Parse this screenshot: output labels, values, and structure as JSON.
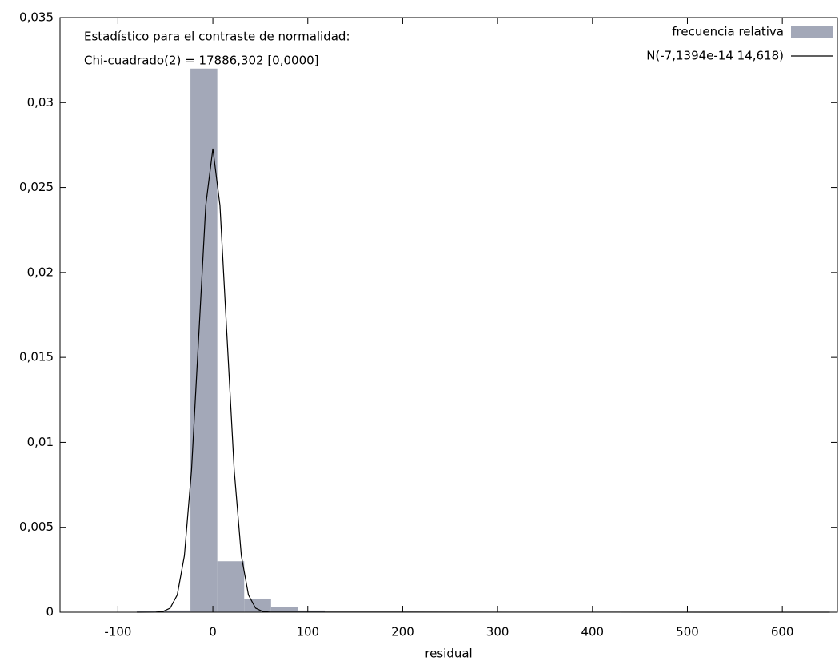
{
  "chart_data": {
    "type": "histogram",
    "annotations": [
      "Estadístico para el contraste de normalidad:",
      "Chi-cuadrado(2) = 17886,302 [0,0000]"
    ],
    "xlabel": "residual",
    "xlim": [
      -161,
      658
    ],
    "ylim": [
      0,
      0.035
    ],
    "xticks": [
      -100,
      0,
      100,
      200,
      300,
      400,
      500,
      600
    ],
    "yticks": [
      0,
      {
        "value": 0.005,
        "label": "0,005"
      },
      {
        "value": 0.01,
        "label": "0,01"
      },
      {
        "value": 0.015,
        "label": "0,015"
      },
      {
        "value": 0.02,
        "label": "0,02"
      },
      {
        "value": 0.025,
        "label": "0,025"
      },
      {
        "value": 0.03,
        "label": "0,03"
      },
      {
        "value": 0.035,
        "label": "0,035"
      }
    ],
    "legend": "upper right",
    "series": [
      {
        "name": "frecuencia relativa",
        "type": "histogram",
        "color": "#a3a8b8",
        "bins": [
          -80.2,
          -51.9,
          -23.6,
          4.7,
          33,
          61.3,
          89.6,
          117.9
        ],
        "values": [
          5e-05,
          0.0001,
          0.032,
          0.003,
          0.0008,
          0.0003,
          0.0001
        ]
      },
      {
        "name": "N(-7,1394e-14 14,618)",
        "type": "line",
        "color": "#000000",
        "x": [
          -80,
          -60,
          -52.5,
          -45,
          -37.5,
          -30,
          -22.5,
          -15,
          -7.5,
          0,
          7.5,
          15,
          22.5,
          30,
          37.5,
          45,
          52.5,
          60,
          650
        ],
        "values": [
          0,
          6e-06,
          4.3e-05,
          0.000239,
          0.001016,
          0.003322,
          0.008351,
          0.01612,
          0.02393,
          0.02729,
          0.02393,
          0.01612,
          0.008351,
          0.003322,
          0.001016,
          0.000239,
          4.3e-05,
          6e-06,
          0
        ]
      }
    ]
  }
}
